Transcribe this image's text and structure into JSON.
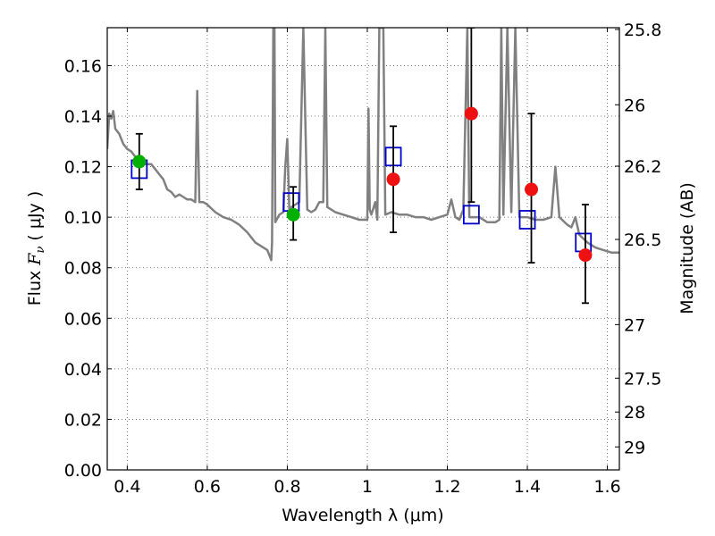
{
  "chart_data": {
    "type": "scatter",
    "xlabel": "Wavelength  λ (μm)",
    "ylabel_parts": [
      "Flux  ",
      "F",
      "ν",
      "  ( μJy )"
    ],
    "y2label": "Magnitude (AB)",
    "xlim": [
      0.35,
      1.63
    ],
    "ylim": [
      0.0,
      0.175
    ],
    "grid": true,
    "x_ticks": [
      0.4,
      0.6,
      0.8,
      1.0,
      1.2,
      1.4,
      1.6
    ],
    "x_tick_labels": [
      "0.4",
      "0.6",
      "0.8",
      "1",
      "1.2",
      "1.4",
      "1.6"
    ],
    "y_ticks": [
      0.0,
      0.02,
      0.04,
      0.06,
      0.08,
      0.1,
      0.12,
      0.14,
      0.16
    ],
    "y_tick_labels": [
      "0.00",
      "0.02",
      "0.04",
      "0.06",
      "0.08",
      "0.10",
      "0.12",
      "0.14",
      "0.16"
    ],
    "mag_ticks": [
      {
        "flux": 0.1743,
        "label": "25.8"
      },
      {
        "flux": 0.1445,
        "label": "26"
      },
      {
        "flux": 0.1202,
        "label": "26.2"
      },
      {
        "flux": 0.0912,
        "label": "26.5"
      },
      {
        "flux": 0.0575,
        "label": "27"
      },
      {
        "flux": 0.0363,
        "label": "27.5"
      },
      {
        "flux": 0.0229,
        "label": "28"
      },
      {
        "flux": 0.0091,
        "label": "29"
      }
    ],
    "colors": {
      "model": "#808080",
      "model_photometry": "#0000cc",
      "green_points": "#00b000",
      "red_points": "#ee1111",
      "error_bars": "#000000",
      "grid": "#555555"
    },
    "model_spectrum": [
      [
        0.35,
        0.127
      ],
      [
        0.355,
        0.141
      ],
      [
        0.36,
        0.139
      ],
      [
        0.365,
        0.142
      ],
      [
        0.37,
        0.135
      ],
      [
        0.38,
        0.133
      ],
      [
        0.39,
        0.129
      ],
      [
        0.4,
        0.127
      ],
      [
        0.41,
        0.126
      ],
      [
        0.42,
        0.124
      ],
      [
        0.43,
        0.122
      ],
      [
        0.44,
        0.121
      ],
      [
        0.45,
        0.121
      ],
      [
        0.46,
        0.121
      ],
      [
        0.47,
        0.119
      ],
      [
        0.48,
        0.117
      ],
      [
        0.49,
        0.115
      ],
      [
        0.5,
        0.111
      ],
      [
        0.51,
        0.11
      ],
      [
        0.52,
        0.108
      ],
      [
        0.53,
        0.109
      ],
      [
        0.54,
        0.108
      ],
      [
        0.55,
        0.107
      ],
      [
        0.56,
        0.107
      ],
      [
        0.57,
        0.106
      ],
      [
        0.575,
        0.15
      ],
      [
        0.58,
        0.106
      ],
      [
        0.59,
        0.106
      ],
      [
        0.6,
        0.105
      ],
      [
        0.62,
        0.102
      ],
      [
        0.64,
        0.1
      ],
      [
        0.66,
        0.099
      ],
      [
        0.68,
        0.097
      ],
      [
        0.7,
        0.094
      ],
      [
        0.72,
        0.09
      ],
      [
        0.74,
        0.088
      ],
      [
        0.75,
        0.087
      ],
      [
        0.755,
        0.085
      ],
      [
        0.76,
        0.083
      ],
      [
        0.762,
        0.09
      ],
      [
        0.765,
        0.175
      ],
      [
        0.768,
        0.175
      ],
      [
        0.77,
        0.098
      ],
      [
        0.78,
        0.101
      ],
      [
        0.79,
        0.102
      ],
      [
        0.795,
        0.12
      ],
      [
        0.8,
        0.131
      ],
      [
        0.805,
        0.103
      ],
      [
        0.81,
        0.104
      ],
      [
        0.82,
        0.105
      ],
      [
        0.83,
        0.106
      ],
      [
        0.84,
        0.175
      ],
      [
        0.85,
        0.103
      ],
      [
        0.86,
        0.102
      ],
      [
        0.87,
        0.103
      ],
      [
        0.88,
        0.106
      ],
      [
        0.89,
        0.106
      ],
      [
        0.895,
        0.175
      ],
      [
        0.9,
        0.104
      ],
      [
        0.92,
        0.102
      ],
      [
        0.94,
        0.101
      ],
      [
        0.96,
        0.1
      ],
      [
        0.98,
        0.099
      ],
      [
        1.0,
        0.099
      ],
      [
        1.003,
        0.143
      ],
      [
        1.006,
        0.103
      ],
      [
        1.01,
        0.101
      ],
      [
        1.02,
        0.106
      ],
      [
        1.025,
        0.099
      ],
      [
        1.03,
        0.175
      ],
      [
        1.04,
        0.175
      ],
      [
        1.045,
        0.101
      ],
      [
        1.06,
        0.102
      ],
      [
        1.08,
        0.101
      ],
      [
        1.1,
        0.101
      ],
      [
        1.12,
        0.1
      ],
      [
        1.14,
        0.1
      ],
      [
        1.16,
        0.099
      ],
      [
        1.18,
        0.1
      ],
      [
        1.2,
        0.101
      ],
      [
        1.21,
        0.107
      ],
      [
        1.22,
        0.1
      ],
      [
        1.23,
        0.099
      ],
      [
        1.24,
        0.103
      ],
      [
        1.25,
        0.175
      ],
      [
        1.255,
        0.1
      ],
      [
        1.27,
        0.1
      ],
      [
        1.28,
        0.1
      ],
      [
        1.3,
        0.098
      ],
      [
        1.32,
        0.098
      ],
      [
        1.33,
        0.099
      ],
      [
        1.335,
        0.175
      ],
      [
        1.34,
        0.101
      ],
      [
        1.35,
        0.175
      ],
      [
        1.36,
        0.102
      ],
      [
        1.37,
        0.175
      ],
      [
        1.38,
        0.1
      ],
      [
        1.4,
        0.1
      ],
      [
        1.42,
        0.099
      ],
      [
        1.44,
        0.099
      ],
      [
        1.46,
        0.1
      ],
      [
        1.47,
        0.12
      ],
      [
        1.48,
        0.1
      ],
      [
        1.5,
        0.097
      ],
      [
        1.51,
        0.096
      ],
      [
        1.52,
        0.1
      ],
      [
        1.53,
        0.093
      ],
      [
        1.55,
        0.09
      ],
      [
        1.57,
        0.088
      ],
      [
        1.59,
        0.087
      ],
      [
        1.61,
        0.086
      ],
      [
        1.63,
        0.086
      ]
    ],
    "model_photometry": [
      {
        "x": 0.43,
        "y": 0.119
      },
      {
        "x": 0.81,
        "y": 0.106
      },
      {
        "x": 1.065,
        "y": 0.124
      },
      {
        "x": 1.26,
        "y": 0.101
      },
      {
        "x": 1.4,
        "y": 0.099
      },
      {
        "x": 1.54,
        "y": 0.09
      }
    ],
    "observed_points": [
      {
        "x": 0.43,
        "y": 0.122,
        "yerr_low": 0.111,
        "yerr_high": 0.133,
        "color": "green"
      },
      {
        "x": 0.815,
        "y": 0.101,
        "yerr_low": 0.091,
        "yerr_high": 0.112,
        "color": "green"
      },
      {
        "x": 1.065,
        "y": 0.115,
        "yerr_low": 0.094,
        "yerr_high": 0.136,
        "color": "red"
      },
      {
        "x": 1.26,
        "y": 0.141,
        "yerr_low": 0.106,
        "yerr_high": 0.175,
        "color": "red"
      },
      {
        "x": 1.41,
        "y": 0.111,
        "yerr_low": 0.082,
        "yerr_high": 0.141,
        "color": "red"
      },
      {
        "x": 1.545,
        "y": 0.085,
        "yerr_low": 0.066,
        "yerr_high": 0.105,
        "color": "red"
      }
    ]
  }
}
